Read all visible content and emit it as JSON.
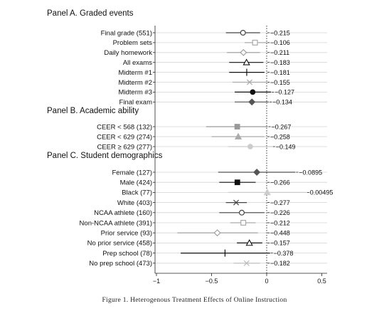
{
  "caption": "Figure 1. Heterogenous Treatment Effects of Online Instruction",
  "chart_data": {
    "type": "scatter",
    "subtype": "coefficient-plot",
    "xlim": [
      -1,
      0.5
    ],
    "xticks": [
      -1,
      -0.5,
      0,
      0.5
    ],
    "xtick_labels": [
      "−1",
      "−0.5",
      "0",
      "0.5"
    ],
    "reference_line": 0,
    "grid": "horizontal",
    "panels": [
      {
        "title": "Panel A. Graded events",
        "rows": [
          {
            "label": "Final grade (551)",
            "estimate": -0.215,
            "value_label": "−0.215",
            "ci": [
              -0.37,
              -0.06
            ],
            "marker": "circle-open",
            "color": "#444444"
          },
          {
            "label": "Problem sets",
            "estimate": -0.106,
            "value_label": "−0.106",
            "ci": [
              -0.2,
              0.0
            ],
            "marker": "square-open",
            "color": "#aaaaaa"
          },
          {
            "label": "Daily homework",
            "estimate": -0.211,
            "value_label": "−0.211",
            "ci": [
              -0.36,
              -0.06
            ],
            "marker": "diamond-open",
            "color": "#999999"
          },
          {
            "label": "All exams",
            "estimate": -0.183,
            "value_label": "−0.183",
            "ci": [
              -0.34,
              -0.03
            ],
            "marker": "triangle-open",
            "color": "#111111"
          },
          {
            "label": "Midterm #1",
            "estimate": -0.181,
            "value_label": "−0.181",
            "ci": [
              -0.34,
              -0.02
            ],
            "marker": "plus",
            "color": "#111111"
          },
          {
            "label": "Midterm #2",
            "estimate": -0.155,
            "value_label": "−0.155",
            "ci": [
              -0.31,
              0.0
            ],
            "marker": "x",
            "color": "#aaaaaa"
          },
          {
            "label": "Midterm #3",
            "estimate": -0.127,
            "value_label": "−0.127",
            "ci": [
              -0.29,
              0.04
            ],
            "marker": "circle-filled",
            "color": "#111111"
          },
          {
            "label": "Final exam",
            "estimate": -0.134,
            "value_label": "−0.134",
            "ci": [
              -0.29,
              0.02
            ],
            "marker": "diamond-filled",
            "color": "#555555"
          }
        ]
      },
      {
        "title": "Panel B. Academic ability",
        "rows": [
          {
            "label": "CEER < 568 (132)",
            "estimate": -0.267,
            "value_label": "−0.267",
            "ci": [
              -0.55,
              0.01
            ],
            "marker": "square-filled",
            "color": "#999999"
          },
          {
            "label": "CEER < 629 (274)",
            "estimate": -0.258,
            "value_label": "−0.258",
            "ci": [
              -0.5,
              -0.02
            ],
            "marker": "triangle-filled",
            "color": "#aaaaaa"
          },
          {
            "label": "CEER ≥ 629 (277)",
            "estimate": -0.149,
            "value_label": "−0.149",
            "ci": [
              -0.35,
              0.05
            ],
            "marker": "circle-filled",
            "color": "#cccccc"
          }
        ]
      },
      {
        "title": "Panel C. Student demographics",
        "rows": [
          {
            "label": "Female (127)",
            "estimate": -0.0895,
            "value_label": "−0.0895",
            "ci": [
              -0.44,
              0.26
            ],
            "marker": "diamond-filled",
            "color": "#555555"
          },
          {
            "label": "Male (424)",
            "estimate": -0.266,
            "value_label": "−0.266",
            "ci": [
              -0.43,
              -0.1
            ],
            "marker": "square-filled",
            "color": "#111111"
          },
          {
            "label": "Black (77)",
            "estimate": 0.00495,
            "value_label": "0.00495",
            "ci": [
              -0.35,
              0.36
            ],
            "marker": "triangle-filled",
            "color": "#cccccc"
          },
          {
            "label": "White (403)",
            "estimate": -0.277,
            "value_label": "−0.277",
            "ci": [
              -0.37,
              -0.18
            ],
            "marker": "x",
            "color": "#444444"
          },
          {
            "label": "NCAA athlete (160)",
            "estimate": -0.226,
            "value_label": "−0.226",
            "ci": [
              -0.43,
              -0.02
            ],
            "marker": "circle-open",
            "color": "#444444"
          },
          {
            "label": "Non-NCAA athlete (391)",
            "estimate": -0.212,
            "value_label": "−0.212",
            "ci": [
              -0.33,
              -0.1
            ],
            "marker": "square-open",
            "color": "#aaaaaa"
          },
          {
            "label": "Prior service (93)",
            "estimate": -0.448,
            "value_label": "−0.448",
            "ci": [
              -0.81,
              -0.08
            ],
            "marker": "diamond-open",
            "color": "#999999"
          },
          {
            "label": "No prior service (458)",
            "estimate": -0.157,
            "value_label": "−0.157",
            "ci": [
              -0.27,
              -0.04
            ],
            "marker": "triangle-open",
            "color": "#111111"
          },
          {
            "label": "Prep school (78)",
            "estimate": -0.378,
            "value_label": "−0.378",
            "ci": [
              -0.78,
              0.03
            ],
            "marker": "plus",
            "color": "#111111"
          },
          {
            "label": "No prep school (473)",
            "estimate": -0.182,
            "value_label": "−0.182",
            "ci": [
              -0.3,
              -0.06
            ],
            "marker": "x",
            "color": "#bbbbbb"
          }
        ]
      }
    ]
  }
}
